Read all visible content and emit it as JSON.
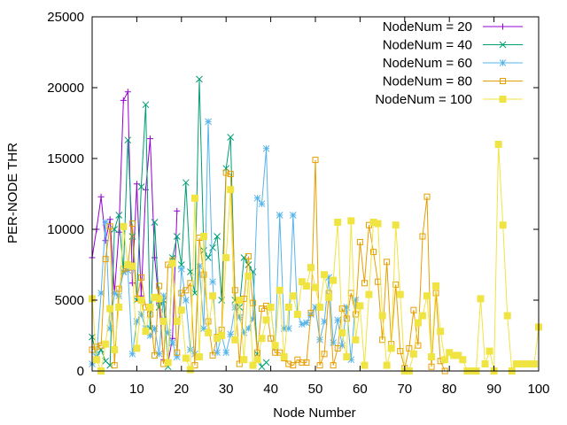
{
  "chart_data": {
    "type": "line",
    "title": "",
    "xlabel": "Node Number",
    "ylabel": "PER-NODE THR",
    "xlim": [
      0,
      100
    ],
    "ylim": [
      0,
      25000
    ],
    "xticks": [
      0,
      10,
      20,
      30,
      40,
      50,
      60,
      70,
      80,
      90,
      100
    ],
    "yticks": [
      0,
      5000,
      10000,
      15000,
      20000,
      25000
    ],
    "grid": false,
    "legend_position": "top-right",
    "series": [
      {
        "name": "NodeNum = 20",
        "color": "#9400d3",
        "marker": "plus",
        "x": [
          0,
          1,
          2,
          3,
          4,
          5,
          6,
          7,
          8,
          9,
          10,
          11,
          12,
          13,
          14,
          15,
          16,
          17,
          18,
          19
        ],
        "y": [
          8000,
          10000,
          12300,
          9200,
          10700,
          5500,
          9800,
          19100,
          19700,
          6200,
          13200,
          5300,
          12800,
          16400,
          8000,
          4800,
          800,
          600,
          2300,
          11300
        ]
      },
      {
        "name": "NodeNum = 40",
        "color": "#009e73",
        "marker": "x",
        "x": [
          0,
          1,
          2,
          3,
          4,
          5,
          6,
          7,
          8,
          9,
          10,
          11,
          12,
          13,
          14,
          15,
          16,
          17,
          18,
          19,
          20,
          21,
          22,
          23,
          24,
          25,
          26,
          27,
          28,
          29,
          30,
          31,
          32,
          33,
          34,
          35,
          36,
          37,
          38,
          39
        ],
        "y": [
          2400,
          1000,
          1500,
          700,
          400,
          10000,
          11000,
          7000,
          16300,
          9500,
          5000,
          13000,
          18800,
          3000,
          10500,
          4500,
          5000,
          300,
          8000,
          9500,
          7500,
          13300,
          7000,
          5500,
          20600,
          8500,
          8000,
          8700,
          9500,
          5000,
          14300,
          16500,
          5000,
          4500,
          8000,
          7500,
          7000,
          1200,
          300,
          600
        ]
      },
      {
        "name": "NodeNum = 60",
        "color": "#56b4e9",
        "marker": "star",
        "x": [
          0,
          1,
          2,
          3,
          4,
          5,
          6,
          7,
          8,
          9,
          10,
          11,
          12,
          13,
          14,
          15,
          16,
          17,
          18,
          19,
          20,
          21,
          22,
          23,
          24,
          25,
          26,
          27,
          28,
          29,
          30,
          31,
          32,
          33,
          34,
          35,
          36,
          37,
          38,
          39,
          40,
          41,
          42,
          43,
          44,
          45,
          46,
          47,
          48,
          49,
          50,
          51,
          52,
          53,
          54,
          55,
          56,
          57,
          58,
          59
        ],
        "y": [
          500,
          1000,
          5500,
          10500,
          3000,
          5500,
          5300,
          7000,
          7100,
          1200,
          3500,
          4000,
          3000,
          2500,
          3000,
          1200,
          5300,
          2700,
          2000,
          1000,
          7200,
          5000,
          1500,
          1200,
          7400,
          3000,
          17600,
          6300,
          1300,
          2500,
          1300,
          2600,
          4500,
          3800,
          2700,
          3000,
          3700,
          12200,
          11800,
          15700,
          4500,
          1700,
          11000,
          3000,
          3000,
          11000,
          4000,
          3300,
          3400,
          4000,
          4500,
          2200,
          3500,
          6600,
          2000,
          3600,
          1800,
          4500,
          800,
          5000
        ]
      },
      {
        "name": "NodeNum = 80",
        "color": "#e69f00",
        "marker": "square-open",
        "x": [
          0,
          1,
          2,
          3,
          4,
          5,
          6,
          7,
          8,
          9,
          10,
          11,
          12,
          13,
          14,
          15,
          16,
          17,
          18,
          19,
          20,
          21,
          22,
          23,
          24,
          25,
          26,
          27,
          28,
          29,
          30,
          31,
          32,
          33,
          34,
          35,
          36,
          37,
          38,
          39,
          40,
          41,
          42,
          43,
          44,
          45,
          46,
          47,
          48,
          49,
          50,
          51,
          52,
          53,
          54,
          55,
          56,
          57,
          58,
          59,
          60,
          61,
          62,
          63,
          64,
          65,
          66,
          67,
          68,
          69,
          70,
          71,
          72,
          73,
          74,
          75,
          76,
          77,
          78,
          79
        ],
        "y": [
          1500,
          1700,
          1800,
          7900,
          10200,
          400,
          5800,
          7200,
          7300,
          10400,
          5100,
          6600,
          4500,
          4000,
          1100,
          6000,
          500,
          7500,
          7800,
          1300,
          5500,
          5700,
          6200,
          400,
          9400,
          6800,
          3500,
          1100,
          2400,
          2900,
          14000,
          13900,
          5700,
          500,
          5100,
          8100,
          4800,
          1300,
          4400,
          4600,
          2300,
          1300,
          1300,
          900,
          500,
          400,
          800,
          600,
          600,
          4100,
          14900,
          400,
          1200,
          5500,
          400,
          1600,
          4400,
          3700,
          5500,
          4000,
          9100,
          6200,
          10300,
          8400,
          6300,
          2200,
          7700,
          1900,
          6100,
          1400,
          200,
          1600,
          4300,
          1800,
          9500,
          12300,
          300,
          5500,
          700,
          0
        ]
      },
      {
        "name": "NodeNum = 100",
        "color": "#f0e442",
        "marker": "square-filled",
        "x": [
          0,
          1,
          2,
          3,
          4,
          5,
          6,
          7,
          8,
          9,
          10,
          11,
          12,
          13,
          14,
          15,
          16,
          17,
          18,
          19,
          20,
          21,
          22,
          23,
          24,
          25,
          26,
          27,
          28,
          29,
          30,
          31,
          32,
          33,
          34,
          35,
          36,
          37,
          38,
          39,
          40,
          41,
          42,
          43,
          44,
          45,
          46,
          47,
          48,
          49,
          50,
          51,
          52,
          53,
          54,
          55,
          56,
          57,
          58,
          59,
          60,
          61,
          62,
          63,
          64,
          65,
          66,
          67,
          68,
          69,
          70,
          71,
          72,
          73,
          74,
          75,
          76,
          77,
          78,
          79,
          80,
          81,
          82,
          83,
          84,
          85,
          86,
          87,
          88,
          89,
          90,
          91,
          92,
          93,
          94,
          95,
          96,
          97,
          98,
          99,
          100
        ],
        "y": [
          5100,
          800,
          0,
          1900,
          4400,
          1500,
          4500,
          10200,
          7500,
          7400,
          1600,
          5000,
          2800,
          4500,
          5200,
          5100,
          3500,
          600,
          7600,
          3500,
          4300,
          900,
          100,
          12200,
          1000,
          9500,
          2700,
          5300,
          2300,
          2500,
          8000,
          12800,
          2200,
          5000,
          800,
          6700,
          400,
          800,
          2300,
          3600,
          4500,
          1800,
          5700,
          1000,
          4500,
          5300,
          4000,
          6300,
          6000,
          7300,
          5900,
          4500,
          6800,
          5200,
          6400,
          10500,
          2700,
          1000,
          10600,
          2200,
          4600,
          400,
          5400,
          10500,
          10400,
          3900,
          400,
          1600,
          10300,
          5400,
          0,
          0,
          1200,
          3400,
          3900,
          5300,
          1000,
          6000,
          2800,
          800,
          1300,
          1100,
          1100,
          800,
          0,
          0,
          0,
          5100,
          500,
          1400,
          0,
          16000,
          10300,
          3900,
          0,
          500,
          500,
          500,
          500,
          500,
          3100
        ]
      }
    ]
  }
}
